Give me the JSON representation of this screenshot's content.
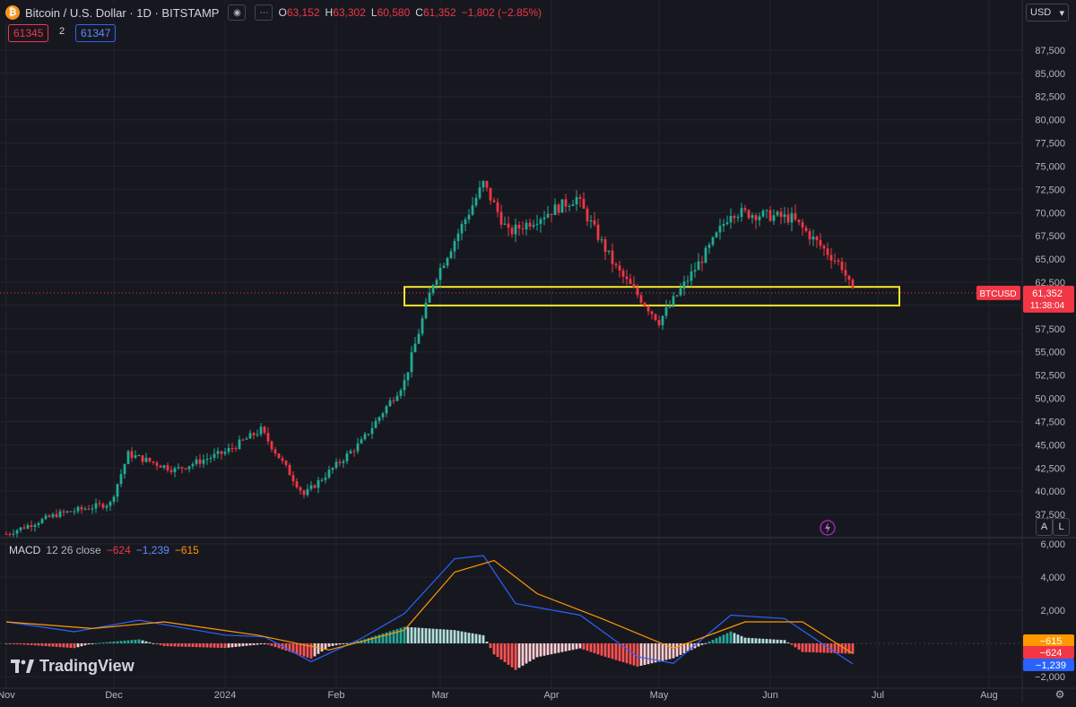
{
  "header": {
    "symbol_title": "Bitcoin / U.S. Dollar · 1D · BITSTAMP",
    "ohlc": [
      {
        "k": "O",
        "v": "63,152"
      },
      {
        "k": "H",
        "v": "63,302"
      },
      {
        "k": "L",
        "v": "60,580"
      },
      {
        "k": "C",
        "v": "61,352"
      }
    ],
    "change": "−1,802 (−2.85%)",
    "bid": "61345",
    "spread": "2",
    "ask": "61347"
  },
  "currency": "USD",
  "price_tag": {
    "symbol": "BTCUSD",
    "price": "61,352",
    "countdown": "11:38:04"
  },
  "macd_header": {
    "name": "MACD",
    "params": "12 26 close",
    "hist": "−624",
    "macd": "−1,239",
    "signal": "−615"
  },
  "macd_tags": [
    "−615",
    "−624",
    "−1,239"
  ],
  "brand": "TradingView",
  "scale_buttons": {
    "auto": "A",
    "log": "L"
  },
  "colors": {
    "up": "#22ab94",
    "down": "#f23645",
    "bg": "#17181f",
    "grid": "#22242d",
    "highlight": "#f5e52a",
    "macd": "#2962ff",
    "signal": "#ff9800"
  },
  "chart_data": [
    {
      "type": "candlestick",
      "title": "Bitcoin / U.S. Dollar · 1D · BITSTAMP",
      "x_tick_labels": [
        "Nov",
        "Dec",
        "2024",
        "Feb",
        "Mar",
        "Apr",
        "May",
        "Jun",
        "Jul",
        "Aug"
      ],
      "y_tick_labels": [
        "87,500",
        "85,000",
        "82,500",
        "80,000",
        "77,500",
        "75,000",
        "72,500",
        "70,000",
        "67,500",
        "65,000",
        "62,500",
        "60,000",
        "57,500",
        "55,000",
        "52,500",
        "50,000",
        "47,500",
        "45,000",
        "42,500",
        "40,000",
        "37,500"
      ],
      "ylim": [
        35000,
        90000
      ],
      "last_price": 61352,
      "highlight_zone": {
        "from_label": "Feb",
        "to_label": "Jul",
        "low": 60000,
        "high": 62000,
        "color": "#f5e52a"
      },
      "approx_close_path": [
        {
          "date": "2023-11-01",
          "close": 35400
        },
        {
          "date": "2023-11-15",
          "close": 37500
        },
        {
          "date": "2023-11-30",
          "close": 38700
        },
        {
          "date": "2023-12-05",
          "close": 44000
        },
        {
          "date": "2023-12-18",
          "close": 42300
        },
        {
          "date": "2024-01-01",
          "close": 44200
        },
        {
          "date": "2024-01-11",
          "close": 46600
        },
        {
          "date": "2024-01-23",
          "close": 39600
        },
        {
          "date": "2024-02-08",
          "close": 45300
        },
        {
          "date": "2024-02-20",
          "close": 51800
        },
        {
          "date": "2024-02-28",
          "close": 62500
        },
        {
          "date": "2024-03-13",
          "close": 73100
        },
        {
          "date": "2024-03-20",
          "close": 67800
        },
        {
          "date": "2024-04-08",
          "close": 71600
        },
        {
          "date": "2024-04-19",
          "close": 64000
        },
        {
          "date": "2024-05-01",
          "close": 58300
        },
        {
          "date": "2024-05-15",
          "close": 66200
        },
        {
          "date": "2024-05-21",
          "close": 70100
        },
        {
          "date": "2024-06-07",
          "close": 69400
        },
        {
          "date": "2024-06-21",
          "close": 64200
        },
        {
          "date": "2024-06-24",
          "close": 61352
        }
      ]
    },
    {
      "type": "line",
      "title": "MACD 12 26 close",
      "y_tick_labels": [
        "6,000",
        "4,000",
        "2,000",
        "−2,000"
      ],
      "ylim": [
        -2600,
        6400
      ],
      "series": [
        {
          "name": "MACD",
          "color": "#2962ff",
          "points": [
            {
              "date": "2023-11-01",
              "value": 1300
            },
            {
              "date": "2023-11-20",
              "value": 700
            },
            {
              "date": "2023-12-08",
              "value": 1400
            },
            {
              "date": "2024-01-01",
              "value": 500
            },
            {
              "date": "2024-01-12",
              "value": 400
            },
            {
              "date": "2024-01-25",
              "value": -1100
            },
            {
              "date": "2024-02-08",
              "value": 300
            },
            {
              "date": "2024-02-20",
              "value": 1800
            },
            {
              "date": "2024-03-05",
              "value": 5100
            },
            {
              "date": "2024-03-13",
              "value": 5300
            },
            {
              "date": "2024-03-22",
              "value": 2400
            },
            {
              "date": "2024-04-09",
              "value": 1700
            },
            {
              "date": "2024-04-25",
              "value": -800
            },
            {
              "date": "2024-05-05",
              "value": -1200
            },
            {
              "date": "2024-05-21",
              "value": 1700
            },
            {
              "date": "2024-06-05",
              "value": 1500
            },
            {
              "date": "2024-06-24",
              "value": -1239
            }
          ]
        },
        {
          "name": "Signal",
          "color": "#ff9800",
          "points": [
            {
              "date": "2023-11-01",
              "value": 1300
            },
            {
              "date": "2023-11-25",
              "value": 900
            },
            {
              "date": "2023-12-15",
              "value": 1300
            },
            {
              "date": "2024-01-10",
              "value": 500
            },
            {
              "date": "2024-01-30",
              "value": -400
            },
            {
              "date": "2024-02-20",
              "value": 800
            },
            {
              "date": "2024-03-05",
              "value": 4300
            },
            {
              "date": "2024-03-16",
              "value": 5000
            },
            {
              "date": "2024-03-28",
              "value": 3000
            },
            {
              "date": "2024-04-15",
              "value": 1500
            },
            {
              "date": "2024-05-05",
              "value": -300
            },
            {
              "date": "2024-05-25",
              "value": 1300
            },
            {
              "date": "2024-06-10",
              "value": 1300
            },
            {
              "date": "2024-06-24",
              "value": -615
            }
          ]
        }
      ]
    }
  ]
}
